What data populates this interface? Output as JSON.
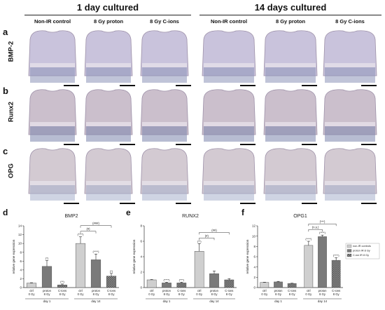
{
  "header": {
    "group_left": "1 day cultured",
    "group_right": "14 days cultured",
    "columns": [
      "Non-IR control",
      "8 Gy proton",
      "8 Gy C-ions",
      "Non-IR control",
      "8 Gy proton",
      "8 Gy C-ions"
    ]
  },
  "rows": [
    {
      "letter": "a",
      "gene": "BMP-2",
      "tone": "#c9c3dc",
      "base": "#8d93b8"
    },
    {
      "letter": "b",
      "gene": "Runx2",
      "tone": "#cbbfcc",
      "base": "#7b85ad"
    },
    {
      "letter": "c",
      "gene": "OPG",
      "tone": "#d3cad2",
      "base": "#a8b0cc"
    }
  ],
  "chart_data": [
    {
      "panel": "d",
      "type": "bar",
      "title": "BMP2",
      "ylabel": "relative gene expression",
      "ylim": [
        0,
        14
      ],
      "yticks": [
        0,
        2,
        4,
        6,
        8,
        10,
        12,
        14
      ],
      "categories": [
        "ctrl\n0 Gy",
        "proton\n8 Gy",
        "C-ions\n8 Gy",
        "ctrl\n0 Gy",
        "proton\n8 Gy",
        "C-ions\n8 Gy"
      ],
      "values": [
        1.0,
        4.8,
        0.6,
        10.0,
        6.3,
        2.6
      ],
      "errors": [
        0.1,
        1.3,
        0.2,
        1.5,
        1.3,
        0.6
      ],
      "stars": [
        "",
        "(*)",
        "(**)",
        "(****)",
        "(****)",
        "(*)"
      ],
      "groups": [
        "day 1",
        "day 14"
      ],
      "brackets": [
        "(#)",
        "(###)"
      ]
    },
    {
      "panel": "e",
      "type": "bar",
      "title": "RUNX2",
      "ylabel": "relative gene expression",
      "ylim": [
        0,
        8
      ],
      "yticks": [
        0,
        2,
        4,
        6,
        8
      ],
      "categories": [
        "ctrl\n0 Gy",
        "proton\n8 Gy",
        "C-ions\n8 Gy",
        "ctrl\n0 Gy",
        "proton\n8 Gy",
        "C-ions\n8 Gy"
      ],
      "values": [
        1.0,
        0.6,
        0.6,
        4.7,
        1.8,
        1.0
      ],
      "errors": [
        0.05,
        0.1,
        0.1,
        1.0,
        0.35,
        0.15
      ],
      "stars": [
        "",
        "(****)",
        "(***)",
        "(**)",
        "",
        ""
      ],
      "groups": [
        "day 1",
        "day 14"
      ],
      "brackets": [
        "(#)",
        "(##)"
      ]
    },
    {
      "panel": "f",
      "type": "bar",
      "title": "OPG1",
      "ylabel": "relative gene expression",
      "ylim": [
        0,
        12
      ],
      "yticks": [
        0,
        2,
        4,
        6,
        8,
        10,
        12
      ],
      "categories": [
        "ctrl\n0 Gy",
        "proton\n8 Gy",
        "C-ions\n8 Gy",
        "ctrl\n0 Gy",
        "proton\n8 Gy",
        "C-ions\n8 Gy"
      ],
      "values": [
        1.0,
        1.1,
        0.8,
        8.2,
        9.9,
        5.3
      ],
      "errors": [
        0.05,
        0.1,
        0.05,
        0.8,
        0.3,
        0.5
      ],
      "stars": [
        "",
        "",
        "",
        "(****)",
        "(****)",
        "(****)"
      ],
      "groups": [
        "day 1",
        "day 14"
      ],
      "brackets": [
        "(n.s.)",
        "(***)"
      ],
      "legend": [
        "non-IR controls",
        "proton IR 8 Gy",
        "C-ion IR 8 Gy"
      ]
    }
  ]
}
